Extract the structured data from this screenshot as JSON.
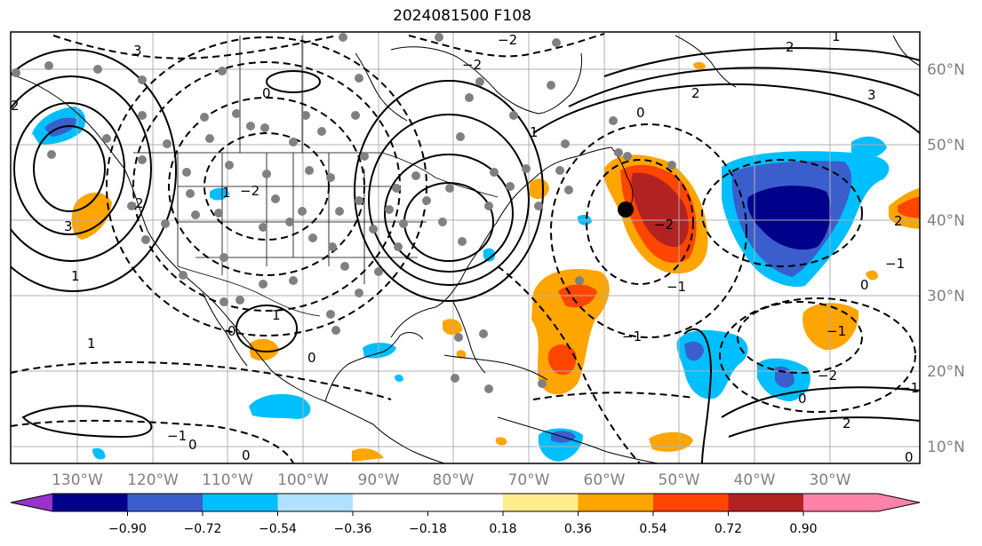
{
  "title": "2024081500 F108",
  "lon_labels": [
    "130°W",
    "120°W",
    "110°W",
    "100°W",
    "90°W",
    "80°W",
    "70°W",
    "60°W",
    "50°W",
    "40°W",
    "30°W"
  ],
  "lat_labels": [
    "60°N",
    "50°N",
    "40°N",
    "30°N",
    "20°N",
    "10°N"
  ],
  "colorbar": {
    "colors": [
      "#9932cc",
      "#00008b",
      "#3a5fcd",
      "#00bfff",
      "#b0e2ff",
      "#ffffff",
      "#ffec8b",
      "#ffa500",
      "#ff4500",
      "#b22222",
      "#ff82ab"
    ],
    "ticks": [
      "−0.90",
      "−0.72",
      "−0.54",
      "−0.36",
      "−0.18",
      "0.18",
      "0.36",
      "0.54",
      "0.72",
      "0.90"
    ]
  },
  "contour_labels": [
    "0",
    "−1",
    "−2",
    "−3",
    "1",
    "2",
    "3"
  ],
  "fill_colors": {
    "deep_blue": "#00008b",
    "mid_blue": "#3a5fcd",
    "light_blue": "#00bfff",
    "orange": "#ffa500",
    "red_orange": "#ff4500",
    "dark_red": "#b22222"
  }
}
